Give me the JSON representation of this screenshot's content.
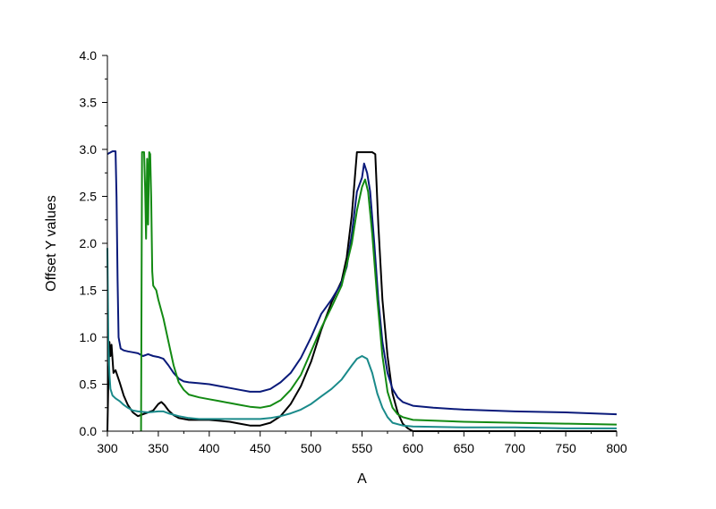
{
  "chart_data": {
    "type": "line",
    "title": "",
    "xlabel": "A",
    "ylabel": "Offset Y values",
    "xlim": [
      300,
      800
    ],
    "ylim": [
      0.0,
      4.0
    ],
    "x_ticks": [
      "300",
      "350",
      "400",
      "450",
      "500",
      "550",
      "600",
      "650",
      "700",
      "750",
      "800"
    ],
    "y_ticks": [
      "0.0",
      "0.5",
      "1.0",
      "1.5",
      "2.0",
      "2.5",
      "3.0",
      "3.5",
      "4.0"
    ],
    "grid": false,
    "legend": "none",
    "series": [
      {
        "color": "#000000",
        "points": [
          [
            300,
            0.0
          ],
          [
            301,
            0.55
          ],
          [
            302,
            0.95
          ],
          [
            303,
            0.8
          ],
          [
            304,
            0.92
          ],
          [
            306,
            0.62
          ],
          [
            308,
            0.65
          ],
          [
            312,
            0.52
          ],
          [
            316,
            0.38
          ],
          [
            320,
            0.28
          ],
          [
            325,
            0.2
          ],
          [
            330,
            0.16
          ],
          [
            335,
            0.18
          ],
          [
            340,
            0.2
          ],
          [
            345,
            0.22
          ],
          [
            350,
            0.29
          ],
          [
            353,
            0.31
          ],
          [
            356,
            0.28
          ],
          [
            360,
            0.22
          ],
          [
            365,
            0.17
          ],
          [
            370,
            0.14
          ],
          [
            380,
            0.12
          ],
          [
            390,
            0.12
          ],
          [
            400,
            0.12
          ],
          [
            410,
            0.11
          ],
          [
            420,
            0.1
          ],
          [
            430,
            0.08
          ],
          [
            440,
            0.06
          ],
          [
            450,
            0.06
          ],
          [
            460,
            0.09
          ],
          [
            470,
            0.16
          ],
          [
            480,
            0.29
          ],
          [
            490,
            0.48
          ],
          [
            500,
            0.74
          ],
          [
            510,
            1.08
          ],
          [
            520,
            1.37
          ],
          [
            530,
            1.6
          ],
          [
            535,
            1.85
          ],
          [
            540,
            2.3
          ],
          [
            545,
            2.97
          ],
          [
            550,
            2.97
          ],
          [
            555,
            2.97
          ],
          [
            560,
            2.97
          ],
          [
            563,
            2.95
          ],
          [
            566,
            2.2
          ],
          [
            570,
            1.4
          ],
          [
            575,
            0.8
          ],
          [
            580,
            0.4
          ],
          [
            585,
            0.2
          ],
          [
            590,
            0.08
          ],
          [
            595,
            0.03
          ],
          [
            600,
            0.0
          ],
          [
            610,
            0.0
          ],
          [
            650,
            0.0
          ],
          [
            700,
            0.0
          ],
          [
            750,
            0.0
          ],
          [
            800,
            0.0
          ]
        ]
      },
      {
        "color": "#0a1a7a",
        "points": [
          [
            300,
            2.95
          ],
          [
            305,
            2.98
          ],
          [
            308,
            2.98
          ],
          [
            309,
            2.5
          ],
          [
            310,
            1.6
          ],
          [
            311,
            1.0
          ],
          [
            313,
            0.88
          ],
          [
            316,
            0.86
          ],
          [
            320,
            0.85
          ],
          [
            325,
            0.84
          ],
          [
            330,
            0.83
          ],
          [
            335,
            0.8
          ],
          [
            340,
            0.82
          ],
          [
            345,
            0.8
          ],
          [
            350,
            0.79
          ],
          [
            355,
            0.77
          ],
          [
            360,
            0.7
          ],
          [
            365,
            0.62
          ],
          [
            370,
            0.56
          ],
          [
            375,
            0.53
          ],
          [
            380,
            0.52
          ],
          [
            390,
            0.51
          ],
          [
            400,
            0.5
          ],
          [
            410,
            0.48
          ],
          [
            420,
            0.46
          ],
          [
            430,
            0.44
          ],
          [
            440,
            0.42
          ],
          [
            450,
            0.42
          ],
          [
            460,
            0.45
          ],
          [
            470,
            0.52
          ],
          [
            480,
            0.62
          ],
          [
            490,
            0.78
          ],
          [
            500,
            1.0
          ],
          [
            510,
            1.25
          ],
          [
            520,
            1.4
          ],
          [
            530,
            1.58
          ],
          [
            535,
            1.75
          ],
          [
            540,
            2.1
          ],
          [
            545,
            2.55
          ],
          [
            550,
            2.7
          ],
          [
            552,
            2.85
          ],
          [
            555,
            2.75
          ],
          [
            558,
            2.55
          ],
          [
            562,
            2.0
          ],
          [
            566,
            1.4
          ],
          [
            570,
            0.95
          ],
          [
            575,
            0.62
          ],
          [
            580,
            0.45
          ],
          [
            585,
            0.36
          ],
          [
            590,
            0.31
          ],
          [
            600,
            0.27
          ],
          [
            620,
            0.25
          ],
          [
            650,
            0.23
          ],
          [
            700,
            0.21
          ],
          [
            750,
            0.2
          ],
          [
            800,
            0.18
          ]
        ]
      },
      {
        "color": "#138a13",
        "points": [
          [
            333,
            0.0
          ],
          [
            334,
            2.97
          ],
          [
            336,
            2.97
          ],
          [
            337,
            2.6
          ],
          [
            338,
            2.05
          ],
          [
            339,
            2.9
          ],
          [
            340,
            2.2
          ],
          [
            341,
            2.97
          ],
          [
            342,
            2.95
          ],
          [
            343,
            2.5
          ],
          [
            344,
            1.7
          ],
          [
            345,
            1.55
          ],
          [
            348,
            1.5
          ],
          [
            350,
            1.4
          ],
          [
            355,
            1.2
          ],
          [
            360,
            0.95
          ],
          [
            365,
            0.7
          ],
          [
            370,
            0.52
          ],
          [
            375,
            0.44
          ],
          [
            380,
            0.39
          ],
          [
            390,
            0.36
          ],
          [
            400,
            0.34
          ],
          [
            410,
            0.32
          ],
          [
            420,
            0.3
          ],
          [
            430,
            0.28
          ],
          [
            440,
            0.26
          ],
          [
            450,
            0.25
          ],
          [
            460,
            0.27
          ],
          [
            470,
            0.33
          ],
          [
            480,
            0.44
          ],
          [
            490,
            0.6
          ],
          [
            500,
            0.85
          ],
          [
            510,
            1.1
          ],
          [
            520,
            1.32
          ],
          [
            530,
            1.55
          ],
          [
            540,
            2.0
          ],
          [
            545,
            2.35
          ],
          [
            550,
            2.6
          ],
          [
            553,
            2.68
          ],
          [
            556,
            2.55
          ],
          [
            560,
            2.1
          ],
          [
            565,
            1.4
          ],
          [
            570,
            0.8
          ],
          [
            575,
            0.42
          ],
          [
            580,
            0.25
          ],
          [
            585,
            0.18
          ],
          [
            590,
            0.15
          ],
          [
            600,
            0.12
          ],
          [
            650,
            0.1
          ],
          [
            700,
            0.09
          ],
          [
            750,
            0.08
          ],
          [
            800,
            0.07
          ]
        ]
      },
      {
        "color": "#1a8a8a",
        "points": [
          [
            300,
            1.95
          ],
          [
            301,
            0.9
          ],
          [
            302,
            0.6
          ],
          [
            303,
            0.45
          ],
          [
            305,
            0.38
          ],
          [
            308,
            0.35
          ],
          [
            312,
            0.32
          ],
          [
            316,
            0.28
          ],
          [
            320,
            0.25
          ],
          [
            325,
            0.22
          ],
          [
            330,
            0.21
          ],
          [
            340,
            0.2
          ],
          [
            350,
            0.21
          ],
          [
            355,
            0.21
          ],
          [
            360,
            0.19
          ],
          [
            370,
            0.16
          ],
          [
            380,
            0.14
          ],
          [
            390,
            0.13
          ],
          [
            400,
            0.13
          ],
          [
            420,
            0.13
          ],
          [
            440,
            0.13
          ],
          [
            450,
            0.13
          ],
          [
            460,
            0.14
          ],
          [
            470,
            0.16
          ],
          [
            480,
            0.19
          ],
          [
            490,
            0.23
          ],
          [
            500,
            0.29
          ],
          [
            510,
            0.37
          ],
          [
            520,
            0.45
          ],
          [
            530,
            0.55
          ],
          [
            540,
            0.7
          ],
          [
            545,
            0.77
          ],
          [
            550,
            0.8
          ],
          [
            555,
            0.77
          ],
          [
            560,
            0.62
          ],
          [
            565,
            0.4
          ],
          [
            570,
            0.25
          ],
          [
            575,
            0.15
          ],
          [
            580,
            0.09
          ],
          [
            590,
            0.06
          ],
          [
            600,
            0.05
          ],
          [
            650,
            0.04
          ],
          [
            700,
            0.04
          ],
          [
            750,
            0.03
          ],
          [
            800,
            0.03
          ]
        ]
      }
    ]
  }
}
